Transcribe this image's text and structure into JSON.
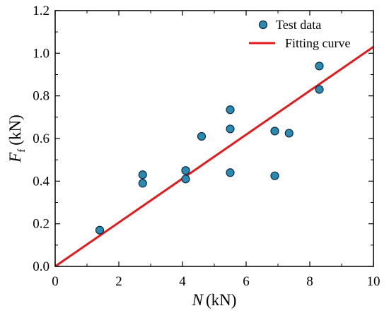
{
  "chart_data": {
    "type": "scatter",
    "xlabel": {
      "symbol": "N",
      "unit": "(kN)"
    },
    "ylabel": {
      "symbol": "F",
      "subscript": "f",
      "unit": "(kN)"
    },
    "xlim": [
      0,
      10
    ],
    "ylim": [
      0,
      1.2
    ],
    "xticks": [
      "0",
      "2",
      "4",
      "6",
      "8",
      "10"
    ],
    "yticks": [
      "0.0",
      "0.2",
      "0.4",
      "0.6",
      "0.8",
      "1.0",
      "1.2"
    ],
    "grid": false,
    "legend_position": "top-right",
    "series": [
      {
        "name": "Test data",
        "kind": "scatter",
        "color": "#2a8ab0",
        "edge_color": "#0b2a4a",
        "points": [
          [
            1.4,
            0.17
          ],
          [
            2.75,
            0.39
          ],
          [
            2.75,
            0.43
          ],
          [
            4.1,
            0.41
          ],
          [
            4.1,
            0.45
          ],
          [
            4.6,
            0.61
          ],
          [
            5.5,
            0.44
          ],
          [
            5.5,
            0.645
          ],
          [
            5.5,
            0.735
          ],
          [
            6.9,
            0.425
          ],
          [
            6.9,
            0.635
          ],
          [
            7.35,
            0.625
          ],
          [
            8.3,
            0.83
          ],
          [
            8.3,
            0.94
          ]
        ]
      },
      {
        "name": "Fitting curve",
        "kind": "line",
        "color": "#e31a1c",
        "points": [
          [
            0,
            0
          ],
          [
            10,
            1.03
          ]
        ]
      }
    ]
  }
}
